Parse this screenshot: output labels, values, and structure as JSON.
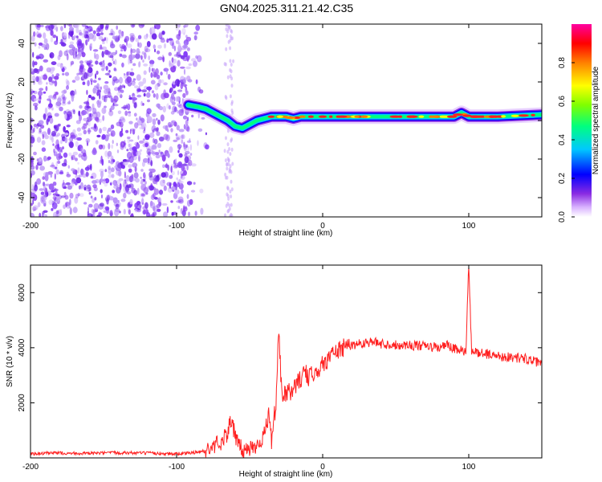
{
  "title": "GN04.2025.311.21.42.C35",
  "chart_data": [
    {
      "type": "heatmap",
      "xlabel": "Height of straight line (km)",
      "ylabel": "Frequency (Hz)",
      "xlim": [
        -200,
        150
      ],
      "ylim": [
        -50,
        50
      ],
      "xticks": [
        -200,
        -100,
        0,
        100
      ],
      "yticks": [
        -40,
        -20,
        0,
        20,
        40
      ],
      "colorbar": {
        "label": "Normalized spectral amplitude",
        "range": [
          0,
          1
        ],
        "ticks": [
          "0.0",
          "0.2",
          "0.4",
          "0.6",
          "0.8"
        ],
        "colors": [
          "#ffffff",
          "#d9b3ff",
          "#8a2be2",
          "#0000ff",
          "#00c8ff",
          "#00ff7f",
          "#7fff00",
          "#ffff00",
          "#ff8000",
          "#ff0000",
          "#ff00a0"
        ]
      },
      "ridge": {
        "x": [
          -92,
          -85,
          -80,
          -75,
          -70,
          -65,
          -60,
          -55,
          -50,
          -45,
          -40,
          -35,
          -30,
          -25,
          -20,
          -15,
          -10,
          -5,
          0,
          10,
          20,
          40,
          60,
          80,
          90,
          95,
          100,
          120,
          150
        ],
        "y": [
          8,
          7,
          6,
          4,
          2,
          0,
          -3,
          -4,
          -2,
          0,
          1,
          2,
          2,
          2,
          1,
          2,
          2,
          2,
          2,
          2,
          2,
          2,
          2,
          2,
          2,
          4,
          2,
          2,
          3
        ]
      },
      "noise_region": {
        "x_start": -200,
        "x_end": -90
      }
    },
    {
      "type": "line",
      "xlabel": "Height of straight line (km)",
      "ylabel": "SNR (10 * v/v)",
      "xlim": [
        -200,
        150
      ],
      "ylim": [
        0,
        7000
      ],
      "xticks": [
        -200,
        -100,
        0,
        100
      ],
      "yticks": [
        2000,
        4000,
        6000
      ],
      "color": "#ff2020",
      "series": {
        "x": [
          -200,
          -180,
          -160,
          -140,
          -120,
          -100,
          -90,
          -80,
          -75,
          -70,
          -65,
          -62,
          -60,
          -57,
          -55,
          -50,
          -45,
          -40,
          -37,
          -35,
          -32,
          -30,
          -28,
          -25,
          -20,
          -15,
          -12,
          -10,
          -7,
          -5,
          -2,
          0,
          5,
          10,
          15,
          20,
          25,
          30,
          35,
          40,
          50,
          60,
          70,
          80,
          85,
          90,
          95,
          98,
          100,
          102,
          105,
          110,
          120,
          130,
          140,
          150
        ],
        "y": [
          150,
          180,
          160,
          190,
          170,
          150,
          180,
          250,
          400,
          600,
          900,
          1500,
          700,
          400,
          250,
          350,
          500,
          800,
          1600,
          600,
          2000,
          4700,
          2200,
          2300,
          2500,
          2900,
          3100,
          2900,
          3000,
          3300,
          3200,
          3400,
          3700,
          3900,
          4000,
          4100,
          4150,
          4200,
          4200,
          4150,
          4100,
          4100,
          4050,
          4000,
          4100,
          3950,
          3900,
          3850,
          7000,
          3800,
          3850,
          3800,
          3700,
          3650,
          3600,
          3400
        ]
      }
    }
  ]
}
